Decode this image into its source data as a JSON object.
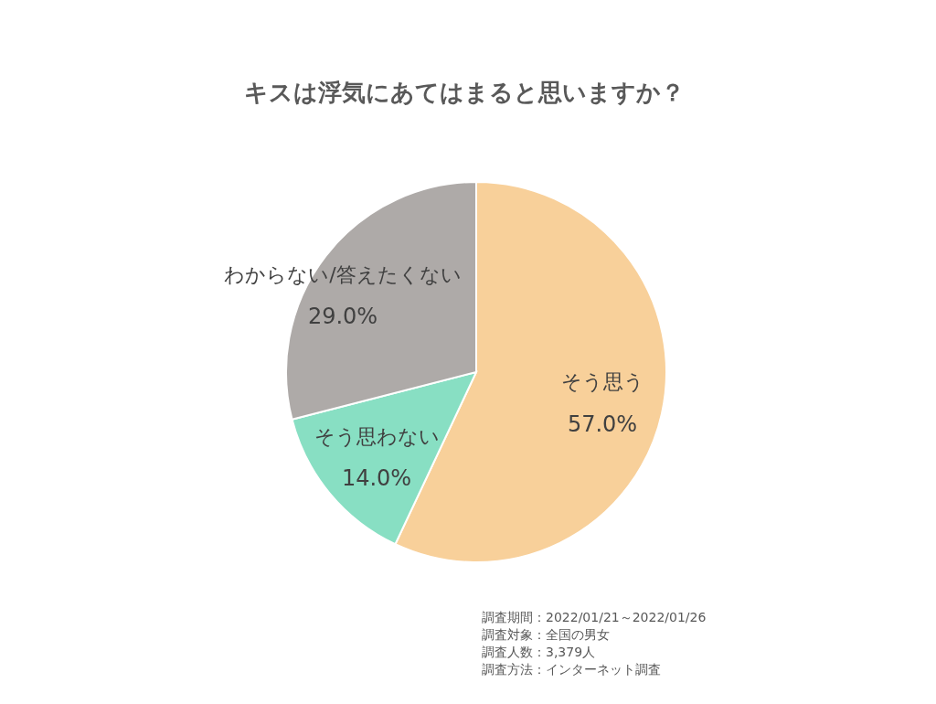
{
  "chart_data": {
    "type": "pie",
    "title": "キスは浮気にあてはまると思いますか？",
    "categories": [
      "そう思う",
      "そう思わない",
      "わからない/答えたくない"
    ],
    "values": [
      57,
      14,
      29
    ],
    "colors": [
      "#f8d09a",
      "#88dfc3",
      "#aeaaa8"
    ],
    "value_labels": [
      "57.0%",
      "14.0%",
      "29.0%"
    ],
    "annotations": [
      "調査期間：2022/01/21～2022/01/26",
      "調査対象：全国の男女",
      "調査人数：3,379人",
      "調査方法：インターネット調査"
    ]
  }
}
